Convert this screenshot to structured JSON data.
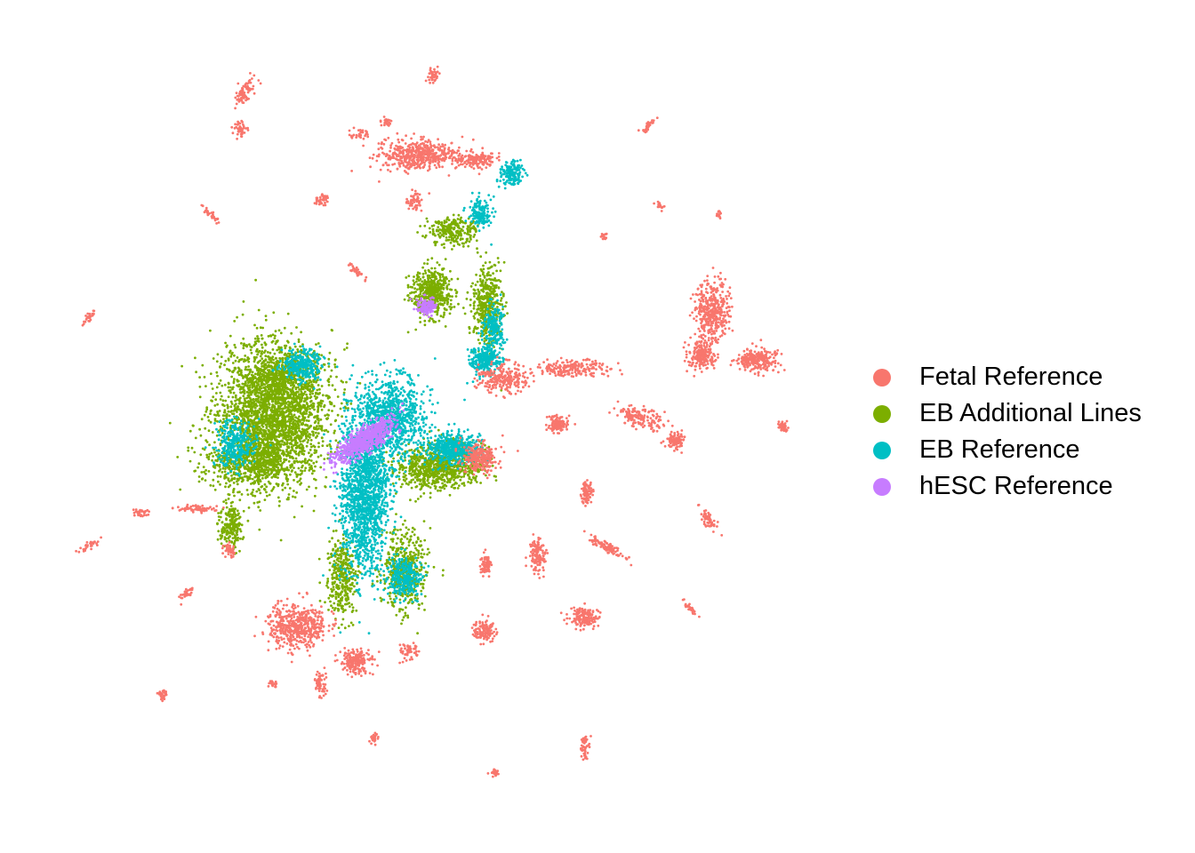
{
  "chart_data": {
    "type": "scatter",
    "title": "",
    "xlabel": "",
    "ylabel": "",
    "grid": false,
    "axes_visible": false,
    "legend_position": "right",
    "series": [
      {
        "name": "Fetal Reference",
        "color": "#F8766D"
      },
      {
        "name": "EB Additional Lines",
        "color": "#7CAE00"
      },
      {
        "name": "EB Reference",
        "color": "#00BFC4"
      },
      {
        "name": "hESC Reference",
        "color": "#C77CFF"
      }
    ]
  }
}
